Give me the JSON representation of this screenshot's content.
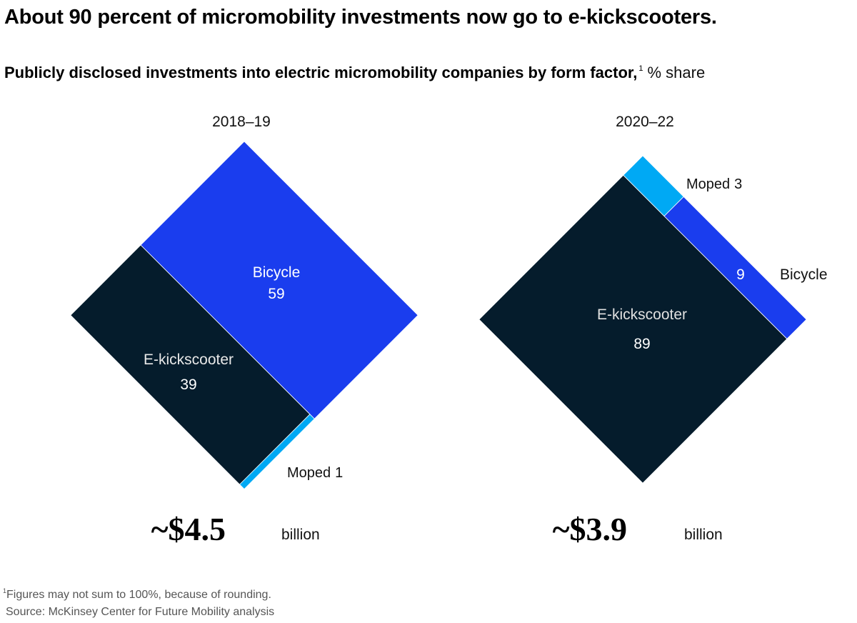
{
  "title": "About 90 percent of micromobility investments now go to e-kickscooters.",
  "subtitle": {
    "text": "Publicly disclosed investments into electric micromobility companies by form factor,",
    "footnote_marker": "1",
    "unit": "% share"
  },
  "colors": {
    "e_kickscooter": "#051C2C",
    "bicycle": "#1A3DEE",
    "moped": "#00A9F4",
    "label_on_dark": "#ffffff",
    "label_outside": "#111111"
  },
  "chart_data": [
    {
      "type": "treemap-diamond",
      "title": "2018–19",
      "total": {
        "value": "~$4.5",
        "unit": "billion"
      },
      "series": [
        {
          "name": "Bicycle",
          "value": 59,
          "label": "Bicycle",
          "value_label": "59"
        },
        {
          "name": "E-kickscooter",
          "value": 39,
          "label": "E-kickscooter",
          "value_label": "39"
        },
        {
          "name": "Moped",
          "value": 1,
          "label": "Moped",
          "value_label": "1"
        }
      ]
    },
    {
      "type": "treemap-diamond",
      "title": "2020–22",
      "total": {
        "value": "~$3.9",
        "unit": "billion"
      },
      "series": [
        {
          "name": "E-kickscooter",
          "value": 89,
          "label": "E-kickscooter",
          "value_label": "89"
        },
        {
          "name": "Bicycle",
          "value": 9,
          "label": "Bicycle",
          "value_label": "9"
        },
        {
          "name": "Moped",
          "value": 3,
          "label": "Moped",
          "value_label": "3"
        }
      ]
    }
  ],
  "footnote": {
    "marker": "1",
    "text": "Figures may not sum to 100%, because of rounding."
  },
  "source": "Source: McKinsey Center for Future Mobility analysis"
}
